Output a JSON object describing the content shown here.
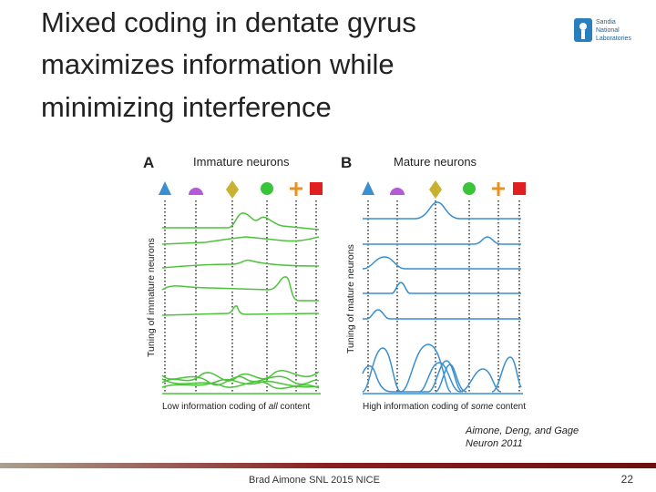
{
  "title": {
    "lines": [
      "Mixed coding in dentate gyrus",
      "maximizes information while",
      "minimizing interference"
    ]
  },
  "logo": {
    "lines": [
      "Sandia",
      "National",
      "Laboratories"
    ]
  },
  "figure": {
    "panel_a": {
      "letter": "A",
      "heading": "Immature neurons",
      "y_label": "Tuning of immature neurons",
      "caption": {
        "before": "Low information coding of ",
        "emphasis": "all",
        "after": " content"
      }
    },
    "panel_b": {
      "letter": "B",
      "heading": "Mature neurons",
      "y_label": "Tuning of mature neurons",
      "caption": {
        "before": "High information coding of ",
        "emphasis": "some",
        "after": " content"
      }
    }
  },
  "citation": {
    "lines": [
      "Aimone, Deng, and Gage",
      "Neuron 2011"
    ]
  },
  "footer": {
    "text": "Brad Aimone SNL 2015 NICE",
    "page": "22"
  }
}
